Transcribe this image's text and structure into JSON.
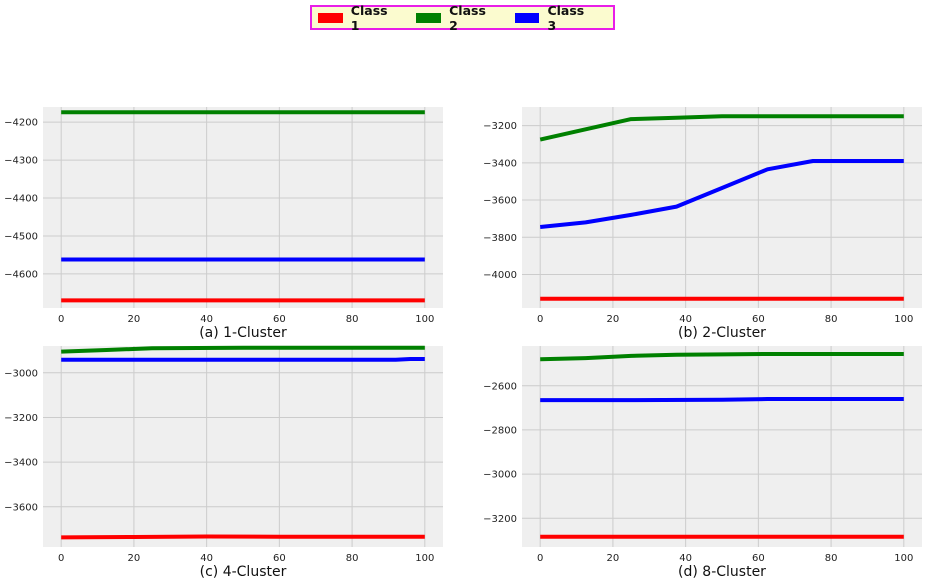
{
  "legend": {
    "items": [
      {
        "label": "Class 1",
        "color": "#ff0000"
      },
      {
        "label": "Class 2",
        "color": "#008000"
      },
      {
        "label": "Class 3",
        "color": "#0000ff"
      }
    ]
  },
  "chart_data": [
    {
      "type": "line",
      "caption": "(a) 1-Cluster",
      "xlim": [
        -5,
        105
      ],
      "ylim": [
        -4690,
        -4160
      ],
      "xticks": [
        0,
        20,
        40,
        60,
        80,
        100
      ],
      "yticks": [
        -4200,
        -4300,
        -4400,
        -4500,
        -4600
      ],
      "grid": true,
      "series": [
        {
          "name": "Class 1",
          "color": "#ff0000",
          "x": [
            0,
            100
          ],
          "y": [
            -4670,
            -4670
          ]
        },
        {
          "name": "Class 2",
          "color": "#008000",
          "x": [
            0,
            100
          ],
          "y": [
            -4174,
            -4174
          ]
        },
        {
          "name": "Class 3",
          "color": "#0000ff",
          "x": [
            0,
            100
          ],
          "y": [
            -4562,
            -4562
          ]
        }
      ]
    },
    {
      "type": "line",
      "caption": "(b) 2-Cluster",
      "xlim": [
        -5,
        105
      ],
      "ylim": [
        -4180,
        -3100
      ],
      "xticks": [
        0,
        20,
        40,
        60,
        80,
        100
      ],
      "yticks": [
        -3200,
        -3400,
        -3600,
        -3800,
        -4000
      ],
      "grid": true,
      "series": [
        {
          "name": "Class 1",
          "color": "#ff0000",
          "x": [
            0,
            100
          ],
          "y": [
            -4130,
            -4130
          ]
        },
        {
          "name": "Class 2",
          "color": "#008000",
          "x": [
            0,
            12.5,
            25,
            37.5,
            50,
            62.5,
            75,
            87.5,
            100
          ],
          "y": [
            -3275,
            -3220,
            -3165,
            -3158,
            -3150,
            -3150,
            -3150,
            -3150,
            -3150
          ]
        },
        {
          "name": "Class 3",
          "color": "#0000ff",
          "x": [
            0,
            12.5,
            25,
            37.5,
            50,
            62.5,
            75,
            87.5,
            100
          ],
          "y": [
            -3745,
            -3720,
            -3680,
            -3635,
            -3535,
            -3435,
            -3390,
            -3390,
            -3390
          ]
        }
      ]
    },
    {
      "type": "line",
      "caption": "(c) 4-Cluster",
      "xlim": [
        -5,
        105
      ],
      "ylim": [
        -3780,
        -2880
      ],
      "xticks": [
        0,
        20,
        40,
        60,
        80,
        100
      ],
      "yticks": [
        -3000,
        -3200,
        -3400,
        -3600
      ],
      "grid": true,
      "series": [
        {
          "name": "Class 1",
          "color": "#ff0000",
          "x": [
            0,
            20,
            40,
            60,
            80,
            100
          ],
          "y": [
            -3737,
            -3735,
            -3733,
            -3734,
            -3734,
            -3734
          ]
        },
        {
          "name": "Class 2",
          "color": "#008000",
          "x": [
            0,
            12.5,
            25,
            37.5,
            50,
            62.5,
            75,
            87.5,
            100
          ],
          "y": [
            -2905,
            -2898,
            -2890,
            -2889,
            -2888,
            -2888,
            -2888,
            -2888,
            -2888
          ]
        },
        {
          "name": "Class 3",
          "color": "#0000ff",
          "x": [
            0,
            25,
            50,
            75,
            92,
            96,
            100
          ],
          "y": [
            -2942,
            -2942,
            -2942,
            -2942,
            -2942,
            -2938,
            -2938
          ]
        }
      ]
    },
    {
      "type": "line",
      "caption": "(d) 8-Cluster",
      "xlim": [
        -5,
        105
      ],
      "ylim": [
        -3330,
        -2420
      ],
      "xticks": [
        0,
        20,
        40,
        60,
        80,
        100
      ],
      "yticks": [
        -2600,
        -2800,
        -3000,
        -3200
      ],
      "grid": true,
      "series": [
        {
          "name": "Class 1",
          "color": "#ff0000",
          "x": [
            0,
            100
          ],
          "y": [
            -3284,
            -3284
          ]
        },
        {
          "name": "Class 2",
          "color": "#008000",
          "x": [
            0,
            12.5,
            25,
            37.5,
            50,
            62.5,
            75,
            87.5,
            100
          ],
          "y": [
            -2480,
            -2475,
            -2465,
            -2460,
            -2458,
            -2456,
            -2456,
            -2456,
            -2456
          ]
        },
        {
          "name": "Class 3",
          "color": "#0000ff",
          "x": [
            0,
            25,
            50,
            62.5,
            75,
            100
          ],
          "y": [
            -2665,
            -2665,
            -2663,
            -2660,
            -2660,
            -2660
          ]
        }
      ]
    }
  ]
}
